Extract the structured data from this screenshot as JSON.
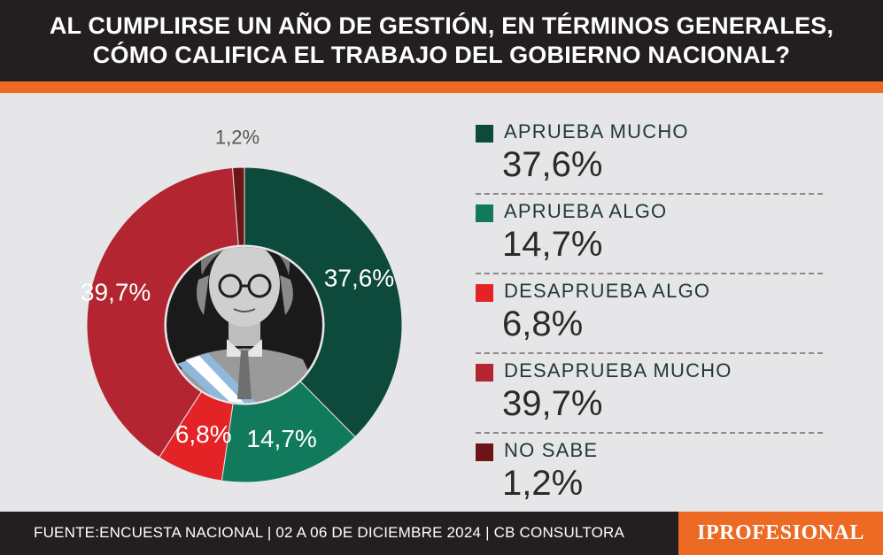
{
  "header": {
    "line1": "AL CUMPLIRSE UN AÑO DE GESTIÓN, EN TÉRMINOS GENERALES,",
    "line2": "CÓMO CALIFICA EL TRABAJO DEL GOBIERNO NACIONAL?"
  },
  "colors": {
    "header_bg": "#231f20",
    "accent_orange": "#ec6a24",
    "background": "#e6e6e8"
  },
  "chart_data": {
    "type": "pie",
    "title": "AL CUMPLIRSE UN AÑO DE GESTIÓN, EN TÉRMINOS GENERALES, CÓMO CALIFICA EL TRABAJO DEL GOBIERNO NACIONAL?",
    "donut": true,
    "legend_placement": "right",
    "slices": [
      {
        "name": "APRUEBA MUCHO",
        "value": 37.6,
        "label": "37,6%",
        "color": "#0d4a3c"
      },
      {
        "name": "APRUEBA ALGO",
        "value": 14.7,
        "label": "14,7%",
        "color": "#117a5c"
      },
      {
        "name": "DESAPRUEBA ALGO",
        "value": 6.8,
        "label": "6,8%",
        "color": "#e42326"
      },
      {
        "name": "DESAPRUEBA MUCHO",
        "value": 39.7,
        "label": "39,7%",
        "color": "#b32530"
      },
      {
        "name": "NO SABE",
        "value": 1.2,
        "label": "1,2%",
        "color": "#6e1416"
      }
    ]
  },
  "center_image": {
    "icon": "president-portrait-icon"
  },
  "footer": {
    "source": "FUENTE:ENCUESTA NACIONAL | 02 A 06 DE DICIEMBRE 2024 | CB CONSULTORA",
    "brand": "IPROFESIONAL"
  }
}
